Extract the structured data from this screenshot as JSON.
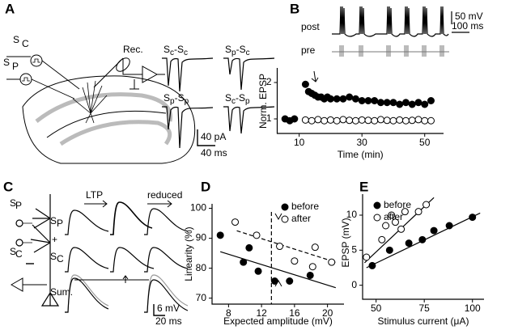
{
  "panel_labels": [
    "A",
    "B",
    "C",
    "D",
    "E"
  ],
  "panel_a": {
    "stim_labels": [
      {
        "s": "S",
        "sub": "C"
      },
      {
        "s": "S",
        "sub": "P"
      }
    ],
    "rec": "Rec.",
    "traces": [
      [
        "S",
        "c",
        "-S",
        "c"
      ],
      [
        "S",
        "p",
        "-S",
        "c"
      ],
      [
        "S",
        "p",
        "-S",
        "p"
      ],
      [
        "S",
        "c",
        "-S",
        "p"
      ]
    ],
    "scale_y": "40 pA",
    "scale_x": "40 ms"
  },
  "panel_b": {
    "trace_labels": [
      "post",
      "pre"
    ],
    "scale_y": "50 mV",
    "scale_x": "100 ms"
  },
  "panel_c": {
    "stim_labels": [
      {
        "s": "S",
        "sub": "P"
      },
      {
        "s": "S",
        "sub": "C"
      }
    ],
    "row_labels": [
      {
        "s": "S",
        "sub": "P"
      },
      "+",
      {
        "s": "S",
        "sub": "C"
      },
      "Sum."
    ],
    "arrows": [
      "LTP",
      "reduced"
    ],
    "scale_y": "6 mV",
    "scale_x": "20 ms"
  },
  "chart_data": [
    {
      "type": "scatter",
      "x_label": "Time (min)",
      "y_label": "Norm. EPSP",
      "xlim": [
        3,
        56
      ],
      "xticks": [
        10,
        30,
        50
      ],
      "ylim": [
        0.6,
        2.4
      ],
      "yticks": [
        1,
        2
      ],
      "series": [
        {
          "color": "#000",
          "fill": "#000",
          "x": [
            5.5,
            7,
            8.5,
            12,
            13,
            14,
            15,
            16,
            17,
            18,
            19,
            20,
            22,
            24,
            26,
            28,
            30,
            32,
            34,
            36,
            38,
            40,
            42,
            44,
            46,
            48,
            50,
            52
          ],
          "values": [
            1.0,
            0.95,
            1.0,
            1.95,
            1.75,
            1.7,
            1.65,
            1.6,
            1.6,
            1.55,
            1.6,
            1.55,
            1.55,
            1.55,
            1.6,
            1.55,
            1.5,
            1.5,
            1.5,
            1.45,
            1.45,
            1.45,
            1.4,
            1.45,
            1.4,
            1.45,
            1.4,
            1.5
          ]
        },
        {
          "color": "#000",
          "fill": "#fff",
          "x": [
            12,
            14,
            16,
            18,
            20,
            22,
            24,
            26,
            28,
            30,
            32,
            34,
            36,
            38,
            40,
            42,
            44,
            46,
            48,
            50,
            52
          ],
          "values": [
            0.97,
            0.95,
            0.98,
            0.95,
            0.97,
            0.95,
            0.98,
            0.96,
            0.95,
            0.97,
            0.96,
            0.95,
            0.98,
            0.96,
            0.95,
            0.97,
            0.95,
            0.96,
            0.98,
            0.95,
            0.95
          ]
        }
      ]
    },
    {
      "type": "scatter",
      "x_label": "Expected amplitude (mV)",
      "y_label": "Linearity (%)",
      "xlim": [
        6,
        22
      ],
      "xticks": [
        8,
        12,
        16,
        20
      ],
      "ylim": [
        68,
        101.5
      ],
      "yticks": [
        70,
        80,
        90,
        100
      ],
      "series": [
        {
          "name": "before",
          "color": "#000",
          "fill": "#000",
          "x": [
            7,
            10.5,
            9.8,
            11.6,
            13.6,
            15.4,
            17.9
          ],
          "values": [
            91,
            86.8,
            82,
            79,
            75.7,
            75.7,
            77.6
          ]
        },
        {
          "name": "after",
          "color": "#000",
          "fill": "#fff",
          "x": [
            8.8,
            11.4,
            14.2,
            16,
            18.2,
            18.5,
            20.5
          ],
          "values": [
            95.4,
            91,
            87.3,
            82.4,
            80.5,
            87,
            82
          ]
        }
      ],
      "fits": [
        {
          "x": [
            7,
            21
          ],
          "values": [
            85.5,
            73.5
          ],
          "dashed": false
        },
        {
          "x": [
            9,
            21
          ],
          "values": [
            92.5,
            82
          ],
          "dashed": true
        }
      ],
      "reference_x": 13.2
    },
    {
      "type": "scatter",
      "x_label": "Stimulus current (μA)",
      "y_label": "EPSP (mV)",
      "xlim": [
        43,
        106
      ],
      "xticks": [
        50,
        75,
        100
      ],
      "ylim": [
        -2,
        13
      ],
      "yticks": [
        0,
        5,
        10
      ],
      "series": [
        {
          "name": "before",
          "color": "#000",
          "fill": "#000",
          "x": [
            48,
            57,
            67,
            74,
            80,
            88,
            100
          ],
          "values": [
            2.8,
            5,
            6,
            6.5,
            7.8,
            8.5,
            9.7
          ]
        },
        {
          "name": "after",
          "color": "#000",
          "fill": "#fff",
          "x": [
            45,
            53,
            55,
            58,
            60,
            63,
            65,
            72,
            76
          ],
          "values": [
            4,
            6.5,
            8.5,
            10,
            9,
            8,
            10.5,
            10.5,
            11.5
          ]
        }
      ],
      "fits": [
        {
          "x": [
            45,
            104
          ],
          "values": [
            2.5,
            10.3
          ],
          "dashed": false
        },
        {
          "x": [
            44,
            80
          ],
          "values": [
            3.2,
            12.5
          ],
          "dashed": false
        }
      ]
    }
  ]
}
